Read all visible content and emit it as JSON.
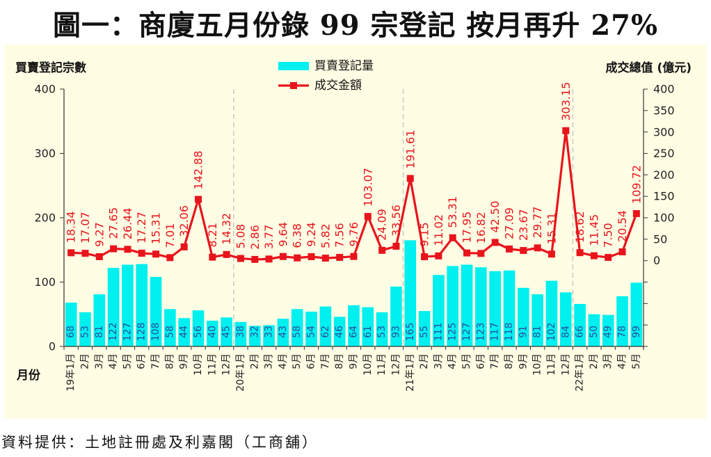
{
  "title": "圖一：商廈五月份錄 99 宗登記  按月再升 27%",
  "source": "資料提供：土地註冊處及利嘉閣（工商舖）",
  "chart_data": {
    "type": "bar+line",
    "left_axis_label": "買賣登記宗數",
    "right_axis_label": "成交總值 (億元)",
    "x_axis_label": "月份",
    "left_ylim": [
      0,
      400
    ],
    "left_ticks": [
      "0",
      "100",
      "200",
      "300",
      "400"
    ],
    "right_ticks": [
      "0",
      "50",
      "100",
      "150",
      "200",
      "250",
      "300",
      "350",
      "400"
    ],
    "categories": [
      "19年1月",
      "2月",
      "3月",
      "4月",
      "5月",
      "6月",
      "7月",
      "8月",
      "9月",
      "10月",
      "11月",
      "12月",
      "20年1月",
      "2月",
      "3月",
      "4月",
      "5月",
      "6月",
      "7月",
      "8月",
      "9月",
      "10月",
      "11月",
      "12月",
      "21年1月",
      "2月",
      "3月",
      "4月",
      "5月",
      "6月",
      "7月",
      "8月",
      "9月",
      "10月",
      "11月",
      "12月",
      "22年1月",
      "2月",
      "3月",
      "4月",
      "5月"
    ],
    "year_separators_after_index": [
      11,
      23,
      35
    ],
    "series": [
      {
        "name": "買賣登記量",
        "type": "bar",
        "axis": "left",
        "color": "#00f0f0",
        "values": [
          68,
          53,
          81,
          122,
          127,
          128,
          108,
          58,
          44,
          56,
          40,
          45,
          38,
          32,
          33,
          43,
          58,
          54,
          62,
          46,
          64,
          61,
          53,
          93,
          165,
          55,
          111,
          125,
          127,
          123,
          117,
          118,
          91,
          81,
          102,
          84,
          66,
          50,
          49,
          78,
          99
        ],
        "labels": [
          "68",
          "53",
          "81",
          "122",
          "127",
          "128",
          "108",
          "58",
          "44",
          "56",
          "40",
          "45",
          "38",
          "32",
          "33",
          "43",
          "58",
          "54",
          "62",
          "46",
          "64",
          "61",
          "53",
          "93",
          "165",
          "55",
          "111",
          "125",
          "127",
          "123",
          "117",
          "118",
          "91",
          "81",
          "102",
          "84",
          "66",
          "50",
          "49",
          "78",
          "99"
        ]
      },
      {
        "name": "成交金額",
        "type": "line",
        "axis": "right",
        "color": "#e8141c",
        "values": [
          18.34,
          17.07,
          9.27,
          27.65,
          26.44,
          17.27,
          15.31,
          7.01,
          32.06,
          142.88,
          8.21,
          14.32,
          5.08,
          2.86,
          3.77,
          9.64,
          6.38,
          9.24,
          5.82,
          7.56,
          9.76,
          103.07,
          24.09,
          33.56,
          191.61,
          9.15,
          11.02,
          53.31,
          17.95,
          16.82,
          42.5,
          27.09,
          23.67,
          29.77,
          15.31,
          303.15,
          18.62,
          11.45,
          7.5,
          20.54,
          109.72
        ],
        "labels": [
          "18.34",
          "17.07",
          "9.27",
          "27.65",
          "26.44",
          "17.27",
          "15.31",
          "7.01",
          "32.06",
          "142.88",
          "8.21",
          "14.32",
          "5.08",
          "2.86",
          "3.77",
          "9.64",
          "6.38",
          "9.24",
          "5.82",
          "7.56",
          "9.76",
          "103.07",
          "24.09",
          "33.56",
          "191.61",
          "9.15",
          "11.02",
          "53.31",
          "17.95",
          "16.82",
          "42.50",
          "27.09",
          "23.67",
          "29.77",
          "15.31",
          "303.15",
          "18.62",
          "11.45",
          "7.50",
          "20.54",
          "109.72"
        ]
      }
    ]
  }
}
